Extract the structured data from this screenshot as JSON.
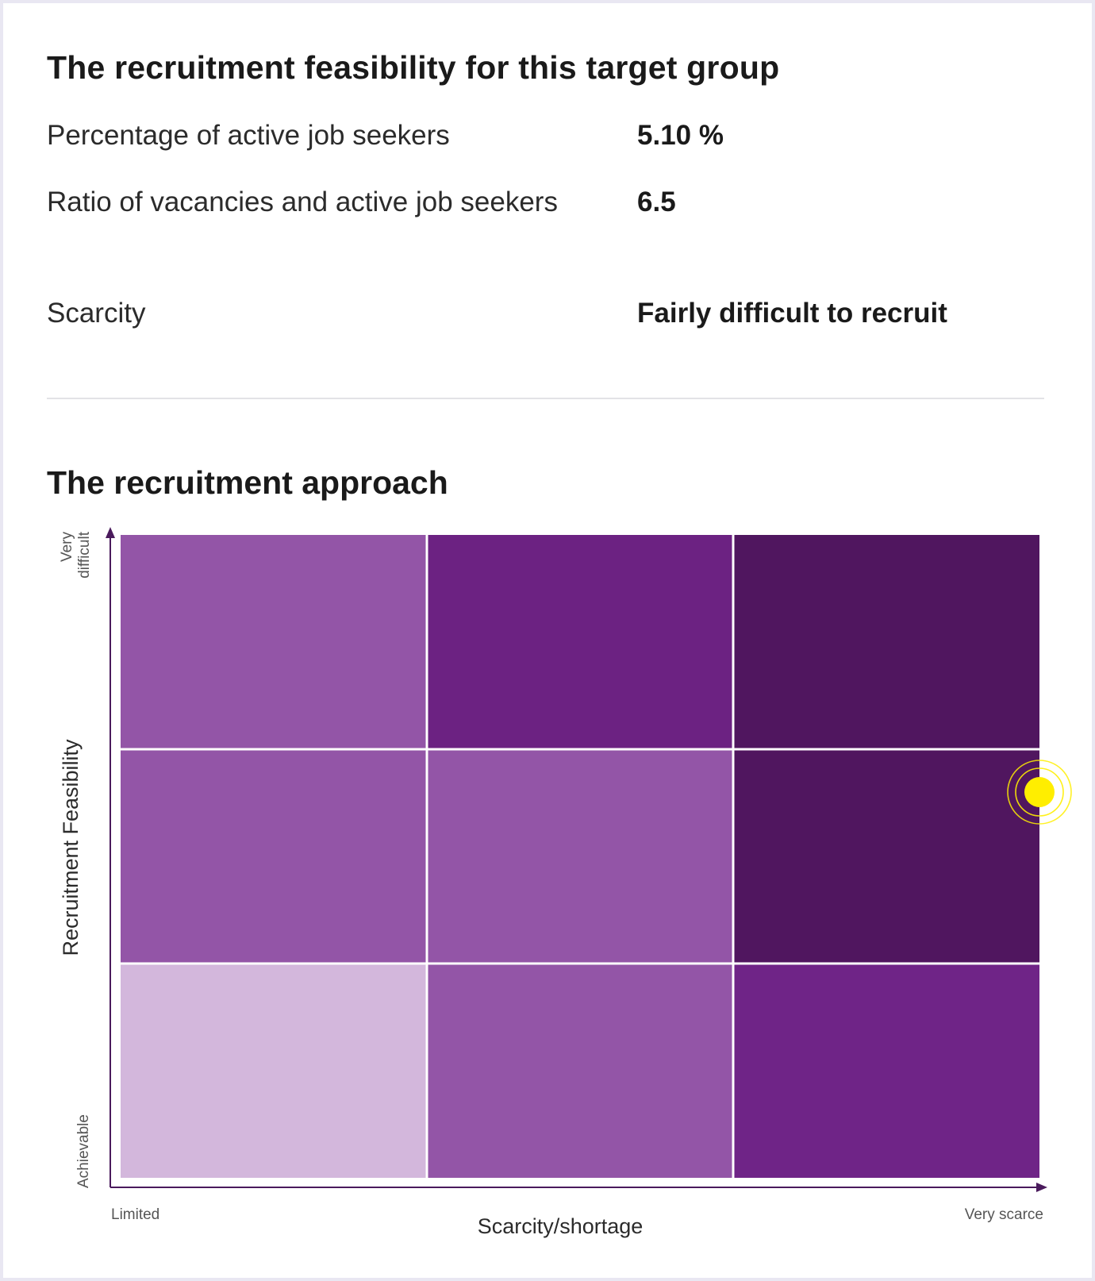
{
  "feasibility": {
    "title": "The recruitment feasibility for this target group",
    "rows": [
      {
        "label": "Percentage of active job seekers",
        "value": "5.10 %"
      },
      {
        "label": "Ratio of vacancies and active job seekers",
        "value": "6.5"
      },
      {
        "label": "Scarcity",
        "value": "Fairly difficult to recruit"
      }
    ]
  },
  "approach": {
    "title": "The recruitment approach"
  },
  "chart_data": {
    "type": "heatmap",
    "title": "The recruitment approach",
    "xlabel": "Scarcity/shortage",
    "ylabel": "Recruitment Feasibility",
    "x_tick_labels": {
      "start": "Limited",
      "end": "Very scarce"
    },
    "y_tick_labels": {
      "start": "Achievable",
      "end": "Very difficult"
    },
    "rows": 3,
    "cols": 3,
    "cells_top_to_bottom": [
      [
        "#9355a7",
        "#6c2282",
        "#50165f"
      ],
      [
        "#9355a7",
        "#9355a7",
        "#50165f"
      ],
      [
        "#d3b7dc",
        "#9355a7",
        "#6f2487"
      ]
    ],
    "marker": {
      "x": 1.0,
      "y": 0.6,
      "color": "#ffee00"
    },
    "axis_color": "#4a1a5c",
    "grid": true
  }
}
